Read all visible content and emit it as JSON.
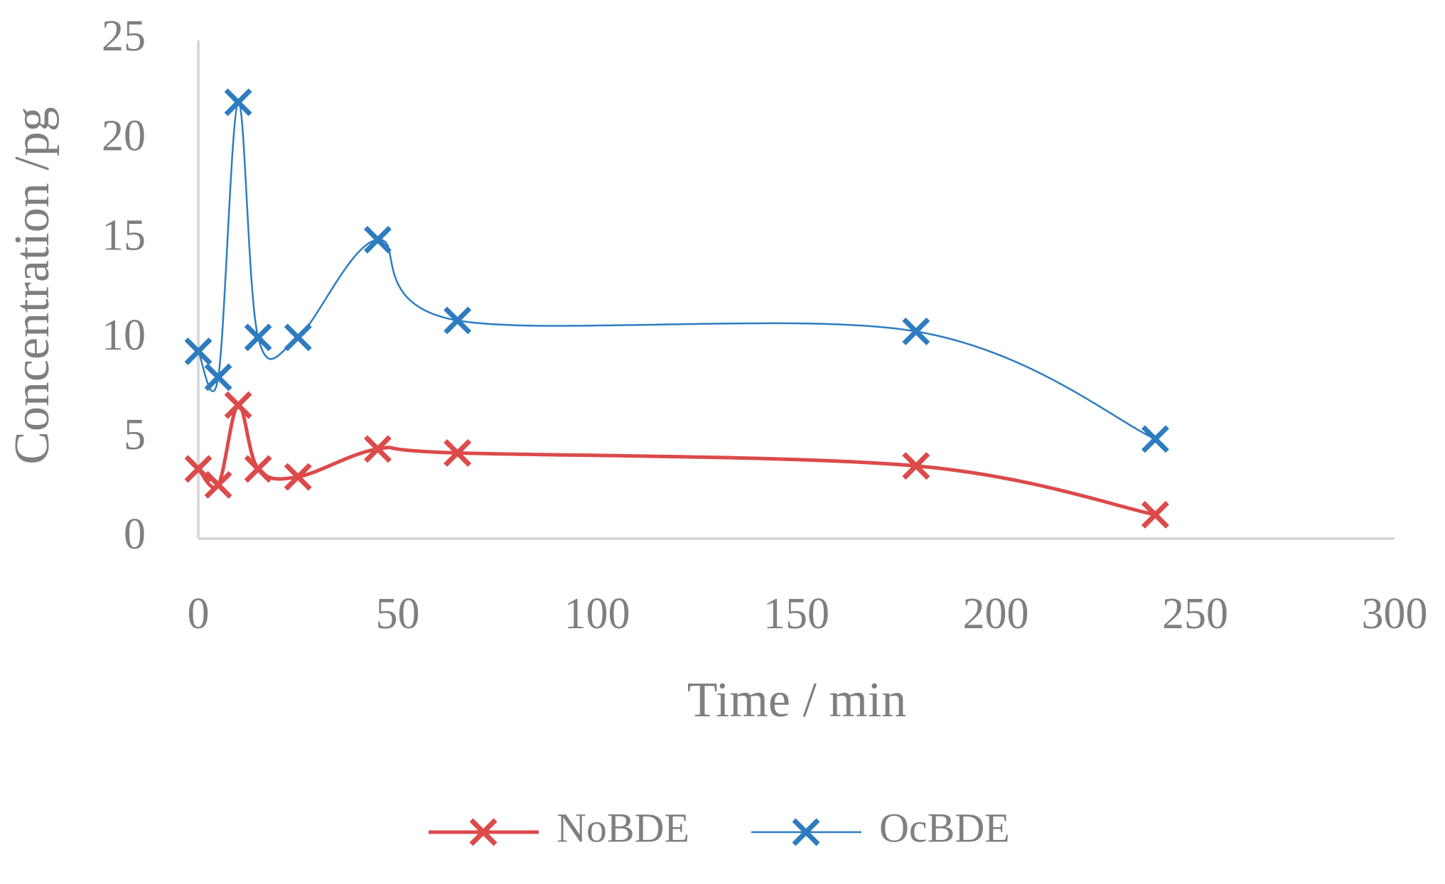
{
  "chart_data": {
    "type": "line",
    "x_label": "Time / min",
    "y_label": "Concentration /pg",
    "x": [
      0,
      5,
      10,
      15,
      25,
      45,
      65,
      180,
      240
    ],
    "series": [
      {
        "name": "NoBDE",
        "color": "#dc4a4a",
        "values": [
          3.5,
          2.7,
          6.7,
          3.5,
          3.1,
          4.5,
          4.3,
          3.65,
          1.2
        ]
      },
      {
        "name": "OcBDE",
        "color": "#2e7cc0",
        "values": [
          9.4,
          8.1,
          21.9,
          10.1,
          10.1,
          15.0,
          10.95,
          10.4,
          5.0
        ]
      }
    ],
    "xlim": [
      0,
      300
    ],
    "xticks": [
      0,
      50,
      100,
      150,
      200,
      250,
      300
    ],
    "ylim": [
      0,
      25
    ],
    "yticks": [
      0,
      5,
      10,
      15,
      20,
      25
    ],
    "grid": false,
    "smooth": true,
    "legend": "bottom"
  }
}
